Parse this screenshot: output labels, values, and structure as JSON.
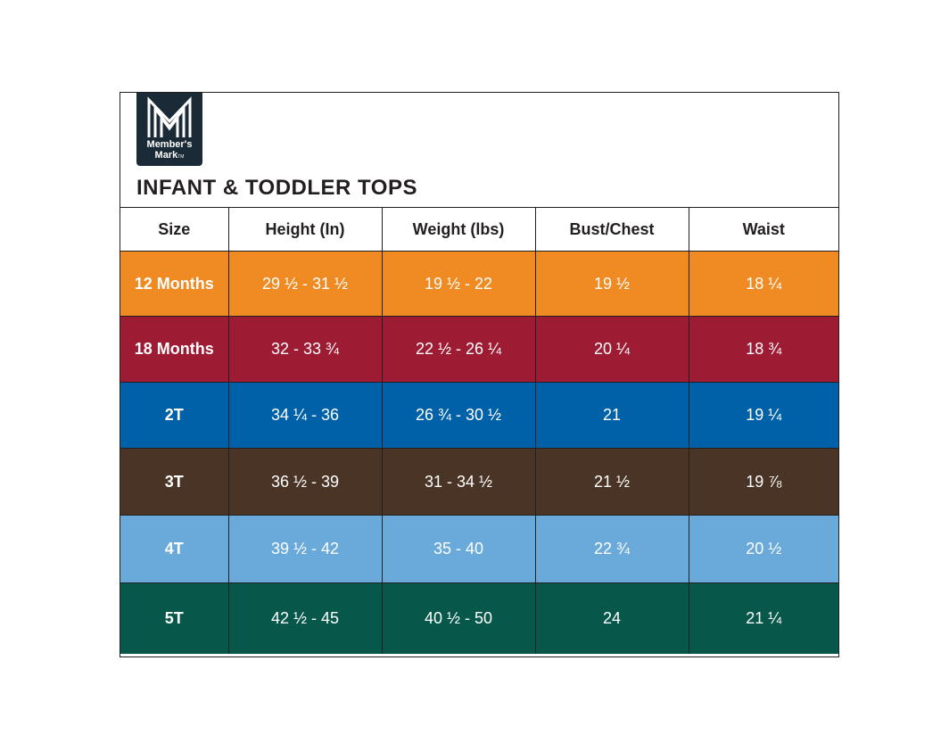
{
  "brand": {
    "line1": "Member's",
    "line2": "Mark",
    "trademark": "TM"
  },
  "title": "INFANT & TODDLER TOPS",
  "columns": [
    "Size",
    "Height (In)",
    "Weight (lbs)",
    "Bust/Chest",
    "Waist"
  ],
  "rows": [
    {
      "color": "#ef8b22",
      "cells": [
        "12 Months",
        "29 ½ - 31 ½",
        "19 ½ - 22",
        "19 ½",
        "18 ¼"
      ]
    },
    {
      "color": "#9e1b34",
      "cells": [
        "18 Months",
        "32 - 33 ¾",
        "22 ½ - 26 ¼",
        "20 ¼",
        "18 ¾"
      ]
    },
    {
      "color": "#0061a8",
      "cells": [
        "2T",
        "34 ¼ - 36",
        "26 ¾ - 30 ½",
        "21",
        "19 ¼"
      ]
    },
    {
      "color": "#4a3426",
      "cells": [
        "3T",
        "36 ½ - 39",
        "31 - 34 ½",
        "21 ½",
        "19 ⅞"
      ]
    },
    {
      "color": "#6aaadb",
      "cells": [
        "4T",
        "39 ½ - 42",
        "35 - 40",
        "22 ¾",
        "20 ½"
      ]
    },
    {
      "color": "#07584a",
      "cells": [
        "5T",
        "42 ½ - 45",
        "40 ½ - 50",
        "24",
        "21 ¼"
      ]
    }
  ]
}
